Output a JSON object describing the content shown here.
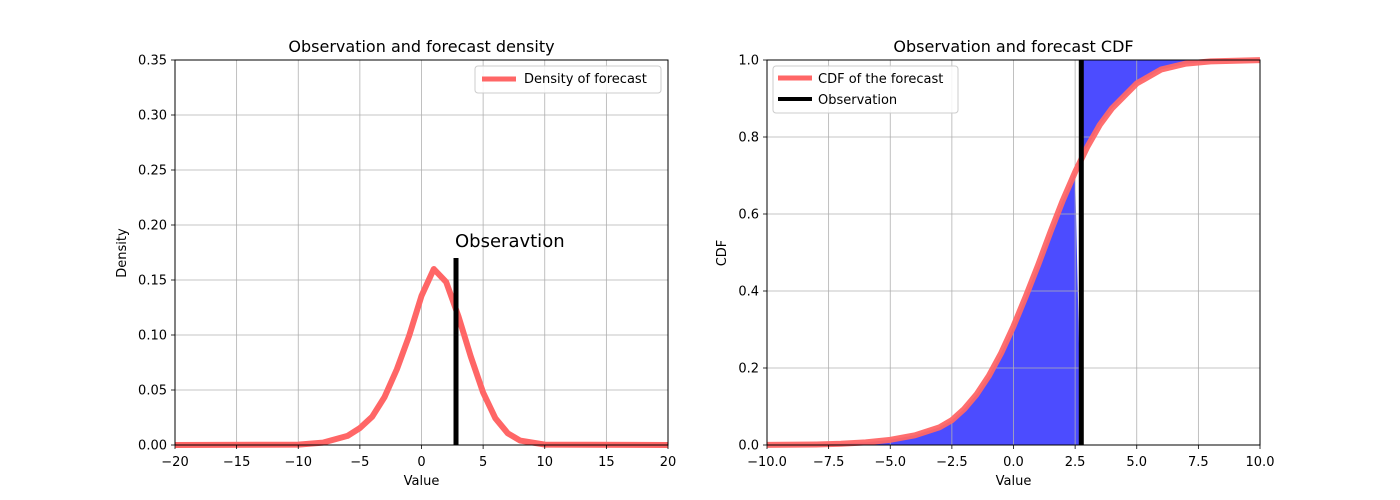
{
  "chart_data": [
    {
      "type": "line",
      "title": "Observation and forecast density",
      "xlabel": "Value",
      "ylabel": "Density",
      "xlim": [
        -20,
        20
      ],
      "ylim": [
        0,
        0.35
      ],
      "xticks": [
        -20,
        -15,
        -10,
        -5,
        0,
        5,
        10,
        15,
        20
      ],
      "xtick_labels": [
        "−20",
        "−15",
        "−10",
        "−5",
        "0",
        "5",
        "10",
        "15",
        "20"
      ],
      "yticks": [
        0,
        0.05,
        0.1,
        0.15,
        0.2,
        0.25,
        0.3,
        0.35
      ],
      "ytick_labels": [
        "0.00",
        "0.05",
        "0.10",
        "0.15",
        "0.20",
        "0.25",
        "0.30",
        "0.35"
      ],
      "grid": true,
      "legend_position": "top-right",
      "series": [
        {
          "name": "Density of forecast",
          "color": "#ff6666",
          "x": [
            -20,
            -10,
            -8,
            -6,
            -5,
            -4,
            -3,
            -2,
            -1,
            0,
            1,
            2,
            3,
            4,
            5,
            6,
            7,
            8,
            10,
            20
          ],
          "y": [
            0,
            0.0004,
            0.0022,
            0.0083,
            0.0154,
            0.0257,
            0.0435,
            0.0689,
            0.0995,
            0.1355,
            0.16,
            0.1481,
            0.1168,
            0.0804,
            0.0477,
            0.0243,
            0.0106,
            0.004,
            0.0004,
            0
          ]
        }
      ],
      "observation": {
        "x": 2.8,
        "y_top": 0.17,
        "color": "#000000"
      },
      "annotation": {
        "text": "Obseravtion",
        "x": 2.8,
        "y": 0.18
      }
    },
    {
      "type": "line",
      "title": "Observation and forecast CDF",
      "xlabel": "Value",
      "ylabel": "CDF",
      "xlim": [
        -10,
        10
      ],
      "ylim": [
        0,
        1
      ],
      "xticks": [
        -10,
        -7.5,
        -5,
        -2.5,
        0,
        2.5,
        5,
        7.5,
        10
      ],
      "xtick_labels": [
        "−10.0",
        "−7.5",
        "−5.0",
        "−2.5",
        "0.0",
        "2.5",
        "5.0",
        "7.5",
        "10.0"
      ],
      "yticks": [
        0,
        0.2,
        0.4,
        0.6,
        0.8,
        1
      ],
      "ytick_labels": [
        "0.0",
        "0.2",
        "0.4",
        "0.6",
        "0.8",
        "1.0"
      ],
      "grid": true,
      "legend_position": "top-left",
      "series": [
        {
          "name": "CDF of the forecast",
          "color": "#ff6666",
          "x": [
            -10,
            -8,
            -7,
            -6,
            -5,
            -4,
            -3,
            -2.5,
            -2,
            -1.5,
            -1,
            -0.5,
            0,
            0.5,
            1,
            1.5,
            2,
            2.5,
            3,
            3.5,
            4,
            5,
            6,
            7,
            8,
            10
          ],
          "y": [
            0.0002,
            0.0013,
            0.003,
            0.0068,
            0.0136,
            0.0251,
            0.0459,
            0.0648,
            0.0934,
            0.1311,
            0.1797,
            0.2389,
            0.3085,
            0.3859,
            0.4681,
            0.5537,
            0.6354,
            0.7088,
            0.7753,
            0.8315,
            0.8749,
            0.9393,
            0.9755,
            0.9906,
            0.9964,
            0.9998
          ]
        },
        {
          "name": "Observation",
          "color": "#000000",
          "x": [
            2.75,
            2.75
          ],
          "y": [
            0,
            1
          ]
        }
      ],
      "fill": {
        "color": "#0000ff",
        "alpha": 0.7,
        "observation_x": 2.75
      }
    }
  ]
}
